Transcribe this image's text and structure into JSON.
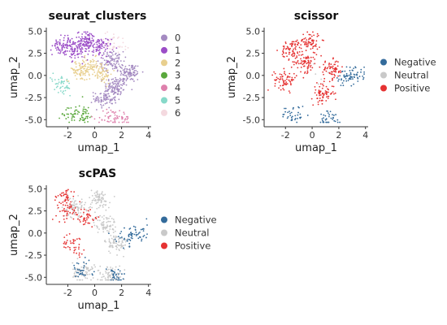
{
  "colors": {
    "seurat_clusters": {
      "0": "#a48ac1",
      "1": "#9b4dc7",
      "2": "#e8cf8e",
      "3": "#5aa83c",
      "4": "#de80ac",
      "5": "#87d9c9",
      "6": "#f4d9df"
    },
    "status": {
      "Negative": "#336b9b",
      "Neutral": "#c9c9c9",
      "Positive": "#e53232"
    }
  },
  "chart_data": [
    {
      "type": "scatter",
      "title": "seurat_clusters",
      "xlabel": "umap_1",
      "ylabel": "umap_2",
      "xlim": [
        -3.6,
        4.2
      ],
      "ylim": [
        -5.8,
        5.4
      ],
      "xticks": [
        -2,
        0,
        2,
        4
      ],
      "yticks": [
        5.0,
        2.5,
        0.0,
        -2.5,
        -5.0
      ],
      "xtick_labels": [
        "-2",
        "0",
        "2",
        "4"
      ],
      "ytick_labels": [
        "5.0",
        "2.5",
        "0.0",
        "-2.5",
        "-5.0"
      ],
      "legend_position": "right",
      "legend": [
        "0",
        "1",
        "2",
        "3",
        "4",
        "5",
        "6"
      ],
      "series": [
        {
          "name": "0",
          "centers": [
            [
              1.6,
              -1.2
            ],
            [
              2.6,
              0.3
            ],
            [
              0.8,
              -2.6
            ],
            [
              1.3,
              1.6
            ]
          ]
        },
        {
          "name": "1",
          "centers": [
            [
              -1.3,
              2.9
            ],
            [
              -0.5,
              3.9
            ],
            [
              -2.3,
              3.4
            ],
            [
              0.4,
              3.2
            ]
          ]
        },
        {
          "name": "2",
          "centers": [
            [
              -1.2,
              0.5
            ],
            [
              -0.3,
              0.9
            ],
            [
              0.5,
              0.2
            ]
          ]
        },
        {
          "name": "3",
          "centers": [
            [
              -1.6,
              -4.3
            ],
            [
              -0.8,
              -4.4
            ]
          ]
        },
        {
          "name": "4",
          "centers": [
            [
              1.1,
              -4.8
            ],
            [
              1.9,
              -4.9
            ]
          ]
        },
        {
          "name": "5",
          "centers": [
            [
              -2.6,
              -0.9
            ],
            [
              -2.3,
              -1.4
            ]
          ]
        },
        {
          "name": "6",
          "centers": [
            [
              1.2,
              3.9
            ],
            [
              1.8,
              3.6
            ]
          ]
        }
      ]
    },
    {
      "type": "scatter",
      "title": "scissor",
      "xlabel": "umap_1",
      "ylabel": "umap_2",
      "xlim": [
        -3.6,
        4.2
      ],
      "ylim": [
        -5.8,
        5.4
      ],
      "xticks": [
        -2,
        0,
        2,
        4
      ],
      "yticks": [
        5.0,
        2.5,
        0.0,
        -2.5,
        -5.0
      ],
      "xtick_labels": [
        "-2",
        "0",
        "2",
        "4"
      ],
      "ytick_labels": [
        "5.0",
        "2.5",
        "0.0",
        "-2.5",
        "-5.0"
      ],
      "legend_position": "right",
      "legend": [
        "Negative",
        "Neutral",
        "Positive"
      ],
      "series": [
        {
          "name": "Positive",
          "centers": [
            [
              -1.5,
              2.9
            ],
            [
              -0.5,
              1.5
            ],
            [
              -2.0,
              -0.5
            ],
            [
              0.8,
              -2.0
            ],
            [
              1.5,
              0.6
            ],
            [
              -0.2,
              3.8
            ]
          ]
        },
        {
          "name": "Negative",
          "centers": [
            [
              3.2,
              0.2
            ],
            [
              2.6,
              -0.4
            ],
            [
              1.3,
              -4.8
            ],
            [
              -1.4,
              -4.5
            ]
          ]
        },
        {
          "name": "Neutral",
          "centers": [
            [
              0.5,
              0.0
            ]
          ]
        }
      ]
    },
    {
      "type": "scatter",
      "title": "scPAS",
      "xlabel": "umap_1",
      "ylabel": "umap_2",
      "xlim": [
        -3.6,
        4.2
      ],
      "ylim": [
        -5.8,
        5.4
      ],
      "xticks": [
        -2,
        0,
        2,
        4
      ],
      "yticks": [
        5.0,
        2.5,
        0.0,
        -2.5,
        -5.0
      ],
      "xtick_labels": [
        "-2",
        "0",
        "2",
        "4"
      ],
      "ytick_labels": [
        "5.0",
        "2.5",
        "0.0",
        "-2.5",
        "-5.0"
      ],
      "legend_position": "right",
      "legend": [
        "Negative",
        "Neutral",
        "Positive"
      ],
      "series": [
        {
          "name": "Neutral",
          "centers": [
            [
              -1.5,
              2.9
            ],
            [
              0.8,
              1.0
            ],
            [
              1.6,
              -1.2
            ],
            [
              -0.8,
              -4.4
            ],
            [
              1.2,
              -4.8
            ],
            [
              0.3,
              3.8
            ]
          ]
        },
        {
          "name": "Positive",
          "centers": [
            [
              -2.0,
              2.5
            ],
            [
              -1.6,
              -1.3
            ],
            [
              -0.6,
              1.8
            ],
            [
              -2.2,
              4.0
            ]
          ]
        },
        {
          "name": "Negative",
          "centers": [
            [
              3.3,
              0.0
            ],
            [
              2.4,
              -0.3
            ],
            [
              -1.0,
              -4.3
            ],
            [
              1.5,
              -4.9
            ]
          ]
        }
      ]
    }
  ]
}
